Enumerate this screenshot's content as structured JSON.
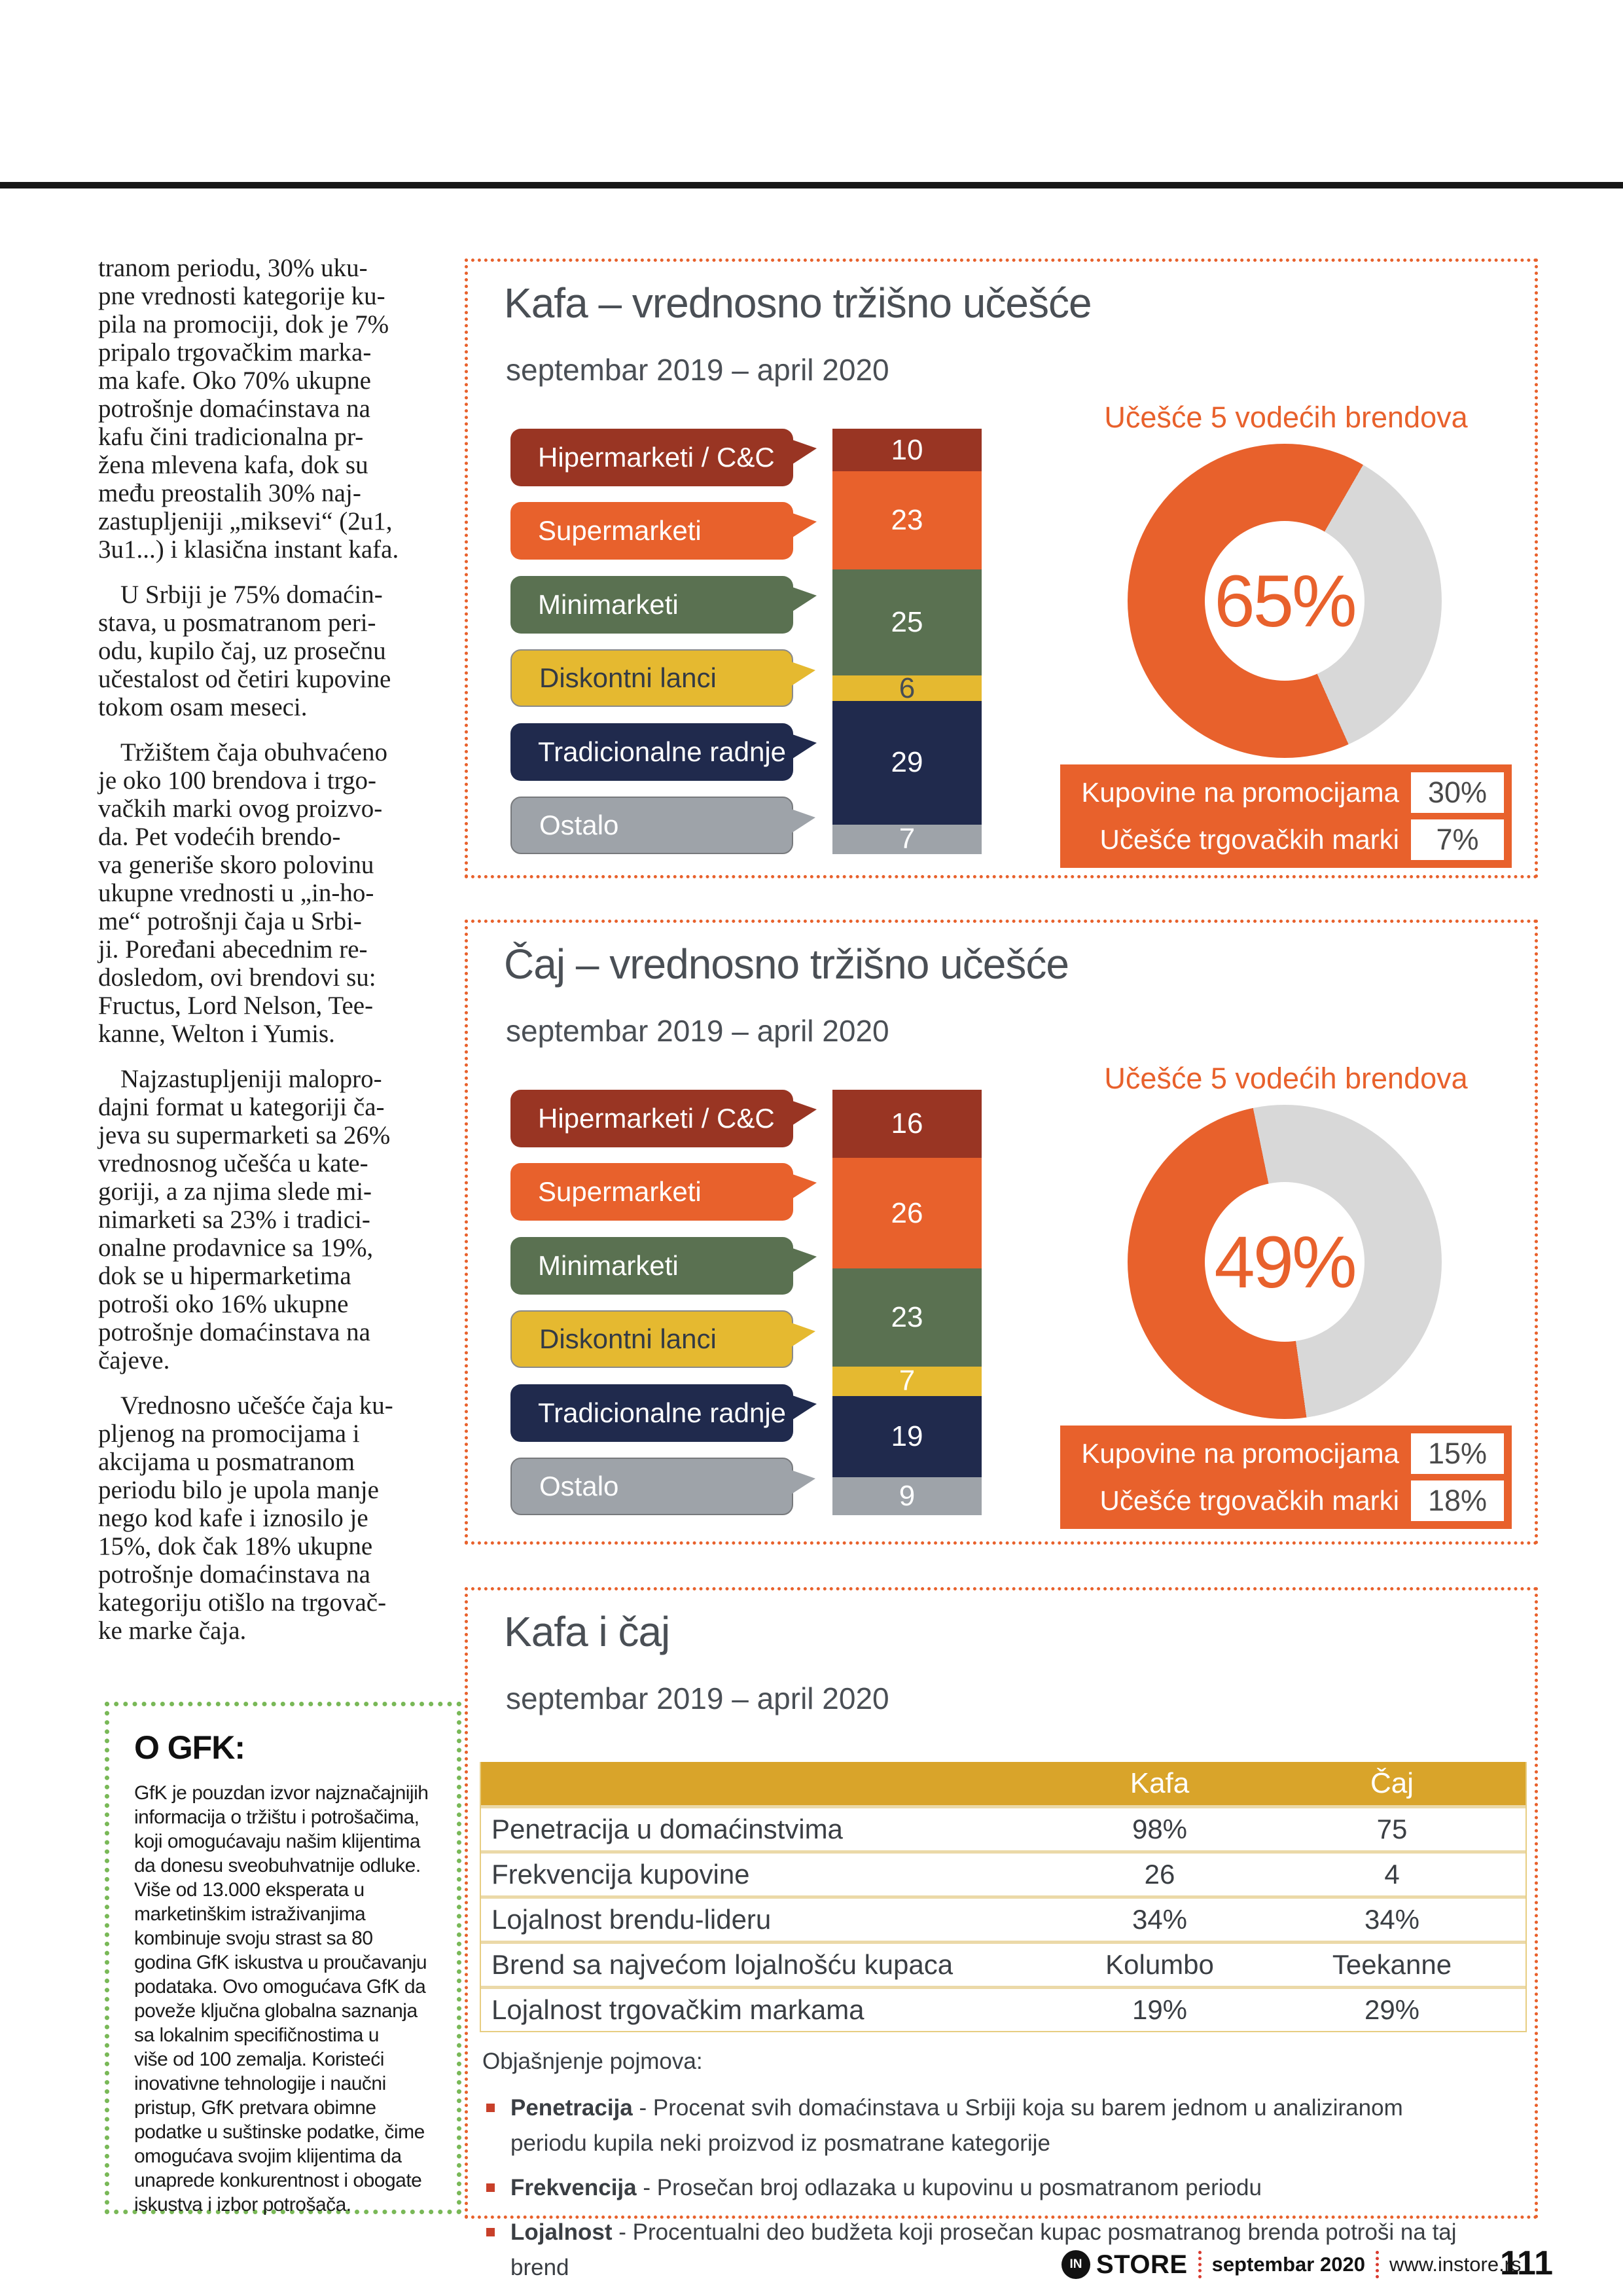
{
  "colors": {
    "accent_orange": "#E8612C",
    "dark_red": "#993523",
    "green": "#5A7151",
    "yellow": "#E5B930",
    "navy": "#202A4D",
    "gray": "#9EA3A9",
    "donut_rest_gray": "#D8D8D8",
    "table_header_gold": "#D9A42A",
    "gfk_border_green": "#79B857",
    "note_bullet_red": "#C8402A",
    "title_gray": "#4A4F55"
  },
  "article": {
    "para1": "tranom periodu, 30% uku-\npne vrednosti kategorije ku-\npila na promociji, dok je 7%\npripalo trgovačkim marka-\nma kafe. Oko 70% ukupne\npotrošnje domaćinstava na\nkafu čini tradicionalna pr-\nžena mlevena kafa, dok su\nmeđu preostalih 30% naj-\nzastupljeniji „miksevi“ (2u1,\n3u1...) i klasična instant kafa.",
    "para2": "U Srbiji je 75% domaćin-\nstava, u posmatranom peri-\nodu, kupilo čaj, uz prosečnu\nučestalost od četiri kupovine\ntokom osam meseci.",
    "para3": "Tržištem čaja obuhvaćeno\nje oko 100 brendova i trgo-\nvačkih marki ovog proizvo-\nda. Pet vodećih brendo-\nva generiše skoro polovinu\nukupne vrednosti u „in-ho-\nme“ potrošnji čaja u Srbi-\nji. Poređani abecednim re-\ndosledom, ovi brendovi su:\nFructus, Lord Nelson, Tee-\nkanne, Welton i Yumis.",
    "para4": "Najzastupljeniji malopro-\ndajni format u kategoriji ča-\njeva su supermarketi sa 26%\nvrednosnog učešća u kate-\ngoriji, a za njima slede mi-\nnimarketi sa 23% i tradici-\nonalne prodavnice sa 19%,\ndok se u hipermarketima\npotroši oko 16% ukupne\npotrošnje domaćinstava na\nčajeve.",
    "para5": "Vrednosno učešće čaja ku-\npljenog na promocijama i\nakcijama u posmatranom\nperiodu bilo je upola manje\nnego kod kafe i iznosilo je\n15%, dok čak 18% ukupne\npotrošnje domaćinstava na\nkategoriju otišlo na trgovač-\nke marke čaja."
  },
  "gfk_box": {
    "title": "O GFK:",
    "body": "GfK je pouzdan izvor najznačajnijih\ninformacija o tržištu i potrošačima,\nkoji omogućavaju našim klijentima\nda donesu sveobuhvatnije odluke.\nViše od 13.000 eksperata u\nmarketinškim istraživanjima\nkombinuje svoju strast sa 80\ngodina GfK iskustva u proučavanju\npodataka. Ovo omogućava GfK da\npoveže ključna globalna saznanja\nsa lokalnim specifičnostima u\nviše od 100 zemalja. Koristeći\ninovativne tehnologije i naučni\npristup, GfK pretvara obimne\npodatke u suštinske podatke, čime\nomogućava svojim klijentima da\nunaprede konkurentnost i obogate\niskustva i izbor potrošača."
  },
  "chart_data": [
    {
      "type": "bar",
      "title": "Kafa – vrednosno tržišno učešće",
      "subtitle": "septembar 2019 – april 2020",
      "categories": [
        "Hipermarketi / C&C",
        "Supermarketi",
        "Minimarketi",
        "Diskontni lanci",
        "Tradicionalne radnje",
        "Ostalo"
      ],
      "values": [
        10,
        23,
        25,
        6,
        29,
        7
      ],
      "segments": [
        {
          "label": "Hipermarketi / C&C",
          "value": 10
        },
        {
          "label": "Supermarketi",
          "value": 23
        },
        {
          "label": "Minimarketi",
          "value": 25
        },
        {
          "label": "Diskontni lanci",
          "value": 6
        },
        {
          "label": "Tradicionalne radnje",
          "value": 29
        },
        {
          "label": "Ostalo",
          "value": 7
        }
      ],
      "donut": {
        "title": "Učešće 5 vodećih brendova",
        "label": "65%",
        "percent": 65,
        "start_deg": 156
      },
      "promo_rows": [
        {
          "label": "Kupovine na promocijama",
          "value": "30%"
        },
        {
          "label": "Učešće trgovačkih marki",
          "value": "7%"
        }
      ]
    },
    {
      "type": "bar",
      "title": "Čaj – vrednosno tržišno učešće",
      "subtitle": "septembar 2019 – april 2020",
      "categories": [
        "Hipermarketi / C&C",
        "Supermarketi",
        "Minimarketi",
        "Diskontni lanci",
        "Tradicionalne radnje",
        "Ostalo"
      ],
      "values": [
        16,
        26,
        23,
        7,
        19,
        9
      ],
      "segments": [
        {
          "label": "Hipermarketi / C&C",
          "value": 16
        },
        {
          "label": "Supermarketi",
          "value": 26
        },
        {
          "label": "Minimarketi",
          "value": 23
        },
        {
          "label": "Diskontni lanci",
          "value": 7
        },
        {
          "label": "Tradicionalne radnje",
          "value": 19
        },
        {
          "label": "Ostalo",
          "value": 9
        }
      ],
      "donut": {
        "title": "Učešće 5 vodećih brendova",
        "label": "49%",
        "percent": 49,
        "start_deg": 172
      },
      "promo_rows": [
        {
          "label": "Kupovine na promocijama",
          "value": "15%"
        },
        {
          "label": "Učešće trgovačkih marki",
          "value": "18%"
        }
      ]
    },
    {
      "type": "table",
      "title": "Kafa i čaj",
      "subtitle": "septembar 2019 – april 2020",
      "columns": [
        "Kafa",
        "Čaj"
      ],
      "rows": [
        {
          "label": "Penetracija u domaćinstvima",
          "kafa": "98%",
          "caj": "75"
        },
        {
          "label": "Frekvencija kupovine",
          "kafa": "26",
          "caj": "4"
        },
        {
          "label": "Lojalnost brendu-lideru",
          "kafa": "34%",
          "caj": "34%"
        },
        {
          "label": "Brend sa najvećom lojalnošću kupaca",
          "kafa": "Kolumbo",
          "caj": "Teekanne"
        },
        {
          "label": "Lojalnost trgovačkim markama",
          "kafa": "19%",
          "caj": "29%"
        }
      ],
      "notes_title": "Objašnjenje pojmova:",
      "notes": [
        {
          "term": "Penetracija",
          "text": "- Procenat svih domaćinstava u Srbiji koja su barem jednom u analiziranom periodu kupila neki proizvod iz posmatrane kategorije"
        },
        {
          "term": "Frekvencija",
          "text": "- Prosečan broj odlazaka u kupovinu u posmatranom periodu"
        },
        {
          "term": "Lojalnost",
          "text": "- Procentualni deo budžeta koji prosečan kupac posmatranog brenda potroši na taj brend"
        }
      ]
    }
  ],
  "footer": {
    "logo_in": "IN",
    "logo_store": "STORE",
    "issue": "septembar 2020",
    "website": "www.instore.rs",
    "page_number": "111"
  }
}
